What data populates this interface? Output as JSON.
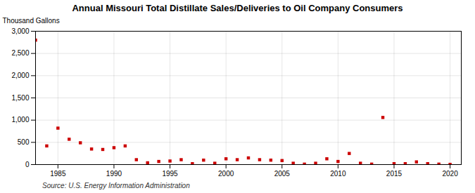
{
  "chart_data": {
    "type": "scatter",
    "title": "Annual Missouri Total Distillate Sales/Deliveries to Oil Company Consumers",
    "ylabel": "Thousand Gallons",
    "annotations": [
      "Source: U.S. Energy Information Administration"
    ],
    "x": [
      1983,
      1984,
      1985,
      1986,
      1987,
      1988,
      1989,
      1990,
      1991,
      1992,
      1993,
      1994,
      1995,
      1996,
      1997,
      1998,
      1999,
      2000,
      2001,
      2002,
      2003,
      2004,
      2005,
      2006,
      2007,
      2008,
      2009,
      2010,
      2011,
      2012,
      2013,
      2014,
      2015,
      2016,
      2017,
      2018,
      2019,
      2020
    ],
    "values": [
      2800,
      420,
      820,
      570,
      490,
      350,
      340,
      380,
      420,
      110,
      40,
      70,
      80,
      110,
      20,
      100,
      30,
      130,
      110,
      150,
      110,
      100,
      90,
      30,
      10,
      30,
      130,
      70,
      250,
      30,
      10,
      1060,
      20,
      20,
      60,
      20,
      10,
      5
    ],
    "color": "#cc0000",
    "marker": "square",
    "xlim": [
      1983,
      2021
    ],
    "xticks": [
      1985,
      1990,
      1995,
      2000,
      2005,
      2010,
      2015,
      2020
    ],
    "ylim": [
      0,
      3000
    ],
    "yticks": [
      0,
      500,
      {
        "value": 1000,
        "label": "1,000"
      },
      {
        "value": 1500,
        "label": "1,500"
      },
      {
        "value": 2000,
        "label": "2,000"
      },
      {
        "value": 2500,
        "label": "2,500"
      },
      {
        "value": 3000,
        "label": "3,000"
      }
    ],
    "grid": true
  }
}
